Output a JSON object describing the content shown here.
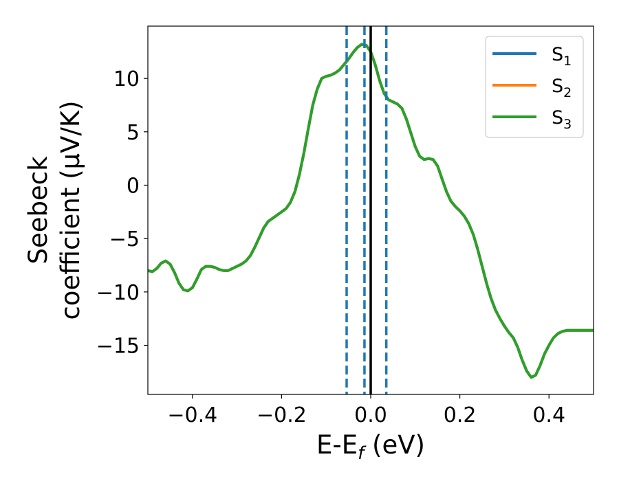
{
  "chart_data": {
    "type": "line",
    "xlabel_main": "E-E",
    "xlabel_sub": "f",
    "xlabel_unit": " (eV)",
    "ylabel_line1": "Seebeck",
    "ylabel_line2": "coefficient  (μV/K)",
    "xlim": [
      -0.5,
      0.5
    ],
    "ylim": [
      -19.6,
      14.9
    ],
    "x_ticks": [
      -0.4,
      -0.2,
      0.0,
      0.2,
      0.4
    ],
    "x_tick_labels": [
      "−0.4",
      "−0.2",
      "0.0",
      "0.2",
      "0.4"
    ],
    "y_ticks": [
      -15,
      -10,
      -5,
      0,
      5,
      10
    ],
    "y_tick_labels": [
      "−15",
      "−10",
      "−5",
      "0",
      "5",
      "10"
    ],
    "grid": false,
    "legend_position": "top-right",
    "series": [
      {
        "name": "S",
        "subscript": "1",
        "color": "#1f77b4"
      },
      {
        "name": "S",
        "subscript": "2",
        "color": "#ff7f0e"
      },
      {
        "name": "S",
        "subscript": "3",
        "color": "#2ca02c"
      }
    ],
    "x": [
      -0.5,
      -0.49,
      -0.48,
      -0.47,
      -0.46,
      -0.45,
      -0.44,
      -0.43,
      -0.42,
      -0.41,
      -0.4,
      -0.39,
      -0.38,
      -0.37,
      -0.36,
      -0.35,
      -0.34,
      -0.33,
      -0.32,
      -0.31,
      -0.3,
      -0.29,
      -0.28,
      -0.27,
      -0.26,
      -0.25,
      -0.24,
      -0.23,
      -0.22,
      -0.21,
      -0.2,
      -0.19,
      -0.18,
      -0.17,
      -0.16,
      -0.15,
      -0.14,
      -0.13,
      -0.12,
      -0.11,
      -0.1,
      -0.09,
      -0.08,
      -0.07,
      -0.06,
      -0.05,
      -0.04,
      -0.03,
      -0.02,
      -0.01,
      0.0,
      0.01,
      0.02,
      0.03,
      0.04,
      0.05,
      0.06,
      0.07,
      0.08,
      0.09,
      0.1,
      0.11,
      0.12,
      0.13,
      0.14,
      0.15,
      0.16,
      0.17,
      0.18,
      0.19,
      0.2,
      0.21,
      0.22,
      0.23,
      0.24,
      0.25,
      0.26,
      0.27,
      0.28,
      0.29,
      0.3,
      0.31,
      0.32,
      0.33,
      0.34,
      0.35,
      0.36,
      0.37,
      0.38,
      0.39,
      0.4,
      0.41,
      0.42,
      0.43,
      0.44,
      0.45,
      0.46,
      0.47,
      0.48,
      0.49,
      0.5
    ],
    "y": [
      -8.0,
      -8.1,
      -7.8,
      -7.3,
      -7.1,
      -7.4,
      -8.2,
      -9.2,
      -9.8,
      -9.9,
      -9.6,
      -8.8,
      -7.9,
      -7.6,
      -7.6,
      -7.7,
      -7.9,
      -8.0,
      -8.0,
      -7.8,
      -7.6,
      -7.4,
      -7.1,
      -6.6,
      -5.8,
      -4.9,
      -4.0,
      -3.4,
      -3.1,
      -2.8,
      -2.5,
      -2.2,
      -1.6,
      -0.6,
      1.0,
      3.0,
      5.3,
      7.5,
      9.0,
      10.0,
      10.2,
      10.3,
      10.5,
      10.8,
      11.3,
      11.8,
      12.4,
      12.9,
      13.2,
      13.1,
      12.5,
      11.3,
      9.8,
      8.6,
      8.0,
      7.8,
      7.6,
      7.2,
      6.2,
      4.9,
      3.6,
      2.7,
      2.4,
      2.5,
      2.4,
      1.8,
      0.6,
      -0.6,
      -1.5,
      -2.0,
      -2.4,
      -2.9,
      -3.6,
      -4.6,
      -6.0,
      -7.6,
      -9.2,
      -10.6,
      -11.7,
      -12.5,
      -13.2,
      -13.8,
      -14.3,
      -15.2,
      -16.4,
      -17.4,
      -18.0,
      -17.8,
      -16.9,
      -15.8,
      -15.0,
      -14.3,
      -13.9,
      -13.7,
      -13.6,
      -13.6,
      -13.6,
      -13.6,
      -13.6,
      -13.6,
      -13.6
    ],
    "vlines": [
      {
        "x": -0.054,
        "color": "#1f77b4",
        "style": "dashed"
      },
      {
        "x": -0.014,
        "color": "#1f77b4",
        "style": "dashed"
      },
      {
        "x": 0.0,
        "color": "#000000",
        "style": "solid"
      },
      {
        "x": 0.035,
        "color": "#1f77b4",
        "style": "dashed"
      }
    ]
  }
}
